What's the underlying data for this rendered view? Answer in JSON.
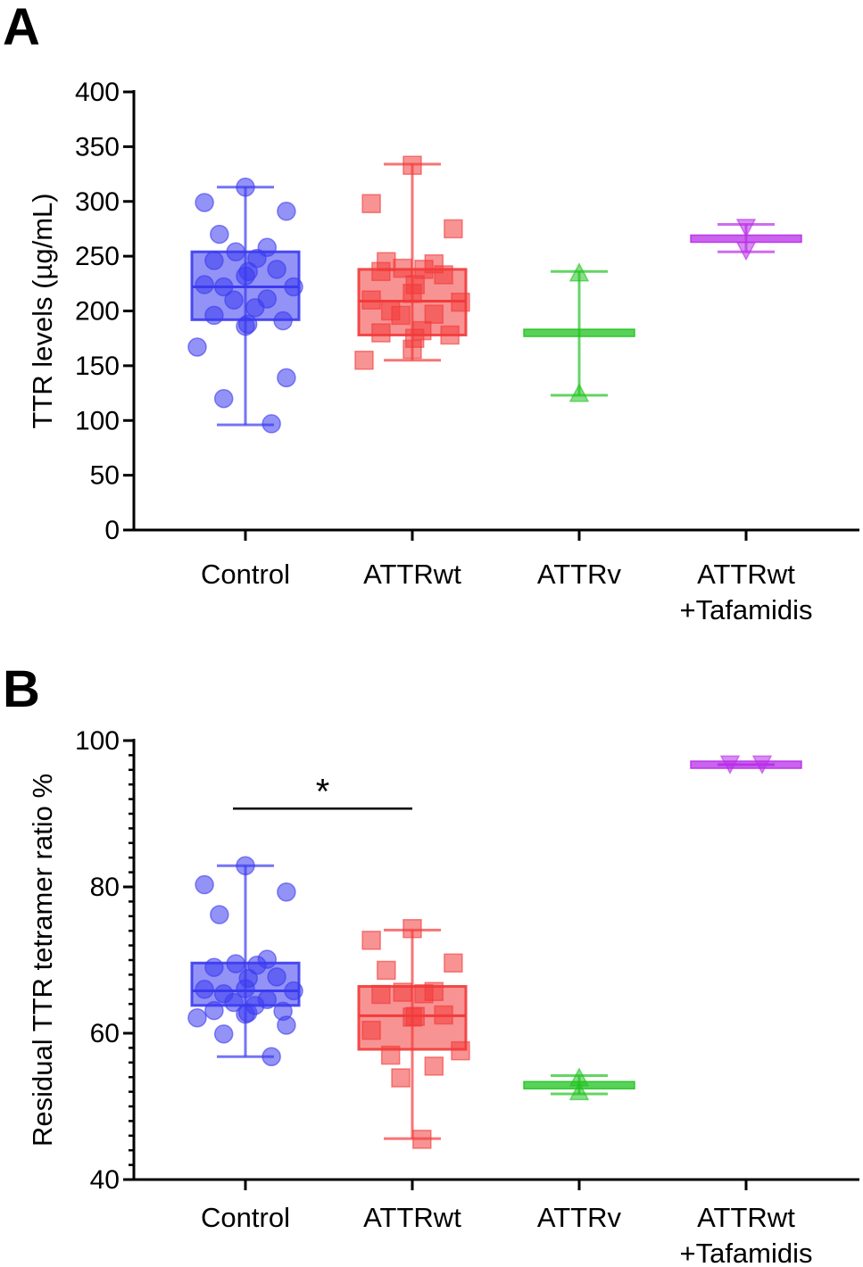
{
  "panels": [
    {
      "letter": "A"
    },
    {
      "letter": "B"
    }
  ],
  "chart_data": [
    {
      "type": "box",
      "panel": "A",
      "title": "",
      "xlabel": "",
      "ylabel": "TTR levels (µg/mL)",
      "ylim": [
        0,
        400
      ],
      "yticks": [
        0,
        50,
        100,
        150,
        200,
        250,
        300,
        350,
        400
      ],
      "minor_ticks": false,
      "categories": [
        "Control",
        "ATTRwt",
        "ATTRv",
        "ATTRwt\n+Tafamidis"
      ],
      "groups": [
        {
          "name": "Control",
          "color": "#3b3bf0",
          "marker": "circle",
          "min": 96,
          "q1": 192,
          "median": 222,
          "q3": 254,
          "max": 313,
          "points": [
            313,
            299,
            291,
            270,
            258,
            254,
            248,
            246,
            238,
            236,
            232,
            224,
            222,
            222,
            211,
            210,
            203,
            196,
            191,
            188,
            186,
            167,
            139,
            120,
            97
          ]
        },
        {
          "name": "ATTRwt",
          "color": "#f23a3a",
          "marker": "square",
          "min": 155,
          "q1": 178,
          "median": 209,
          "q3": 238,
          "max": 334,
          "points": [
            333,
            298,
            275,
            245,
            243,
            239,
            238,
            236,
            233,
            224,
            216,
            210,
            208,
            200,
            197,
            196,
            182,
            180,
            178,
            175,
            165,
            155
          ]
        },
        {
          "name": "ATTRv",
          "color": "#22c322",
          "marker": "triangle-up",
          "min": 123,
          "q1": 180,
          "median": 180,
          "q3": 180,
          "max": 236,
          "points": [
            234,
            124
          ]
        },
        {
          "name": "ATTRwt\n+Tafamidis",
          "color": "#b82fe8",
          "marker": "triangle-down",
          "min": 254,
          "q1": 266,
          "median": 266,
          "q3": 266,
          "max": 279,
          "points": [
            277,
            256
          ]
        }
      ]
    },
    {
      "type": "box",
      "panel": "B",
      "title": "",
      "xlabel": "",
      "ylabel": "Residual TTR tetramer ratio %",
      "ylim": [
        40,
        100
      ],
      "yticks": [
        40,
        60,
        80,
        100
      ],
      "minor_ticks": true,
      "categories": [
        "Control",
        "ATTRwt",
        "ATTRv",
        "ATTRwt\n+Tafamidis"
      ],
      "significance": [
        {
          "from": 0,
          "to": 1,
          "label": "*",
          "y": 90.7
        }
      ],
      "groups": [
        {
          "name": "Control",
          "color": "#3b3bf0",
          "marker": "circle",
          "min": 56.8,
          "q1": 63.8,
          "median": 65.8,
          "q3": 69.6,
          "max": 82.9,
          "points": [
            82.9,
            80.3,
            79.3,
            76.2,
            70.1,
            69.5,
            69.3,
            69.0,
            67.7,
            67.5,
            66.1,
            66.0,
            65.8,
            65.4,
            64.6,
            64.2,
            63.8,
            63.1,
            63.0,
            62.8,
            62.6,
            62.1,
            61.1,
            59.9,
            56.8
          ]
        },
        {
          "name": "ATTRwt",
          "color": "#f23a3a",
          "marker": "square",
          "min": 45.6,
          "q1": 57.8,
          "median": 62.4,
          "q3": 66.4,
          "max": 74.1,
          "points": [
            74.3,
            72.7,
            69.6,
            68.6,
            65.7,
            65.6,
            65.4,
            65.3,
            62.5,
            62.3,
            62.2,
            60.4,
            57.6,
            57.0,
            55.5,
            53.9,
            45.5
          ]
        },
        {
          "name": "ATTRv",
          "color": "#22c322",
          "marker": "triangle-up",
          "min": 51.7,
          "q1": 52.9,
          "median": 52.9,
          "q3": 52.9,
          "max": 54.2,
          "points": [
            53.8,
            51.9
          ]
        },
        {
          "name": "ATTRwt\n+Tafamidis",
          "color": "#b82fe8",
          "marker": "triangle-down",
          "min": 96.7,
          "q1": 96.7,
          "median": 96.7,
          "q3": 96.7,
          "max": 96.7,
          "points": [
            96.9,
            96.9
          ]
        }
      ]
    }
  ]
}
